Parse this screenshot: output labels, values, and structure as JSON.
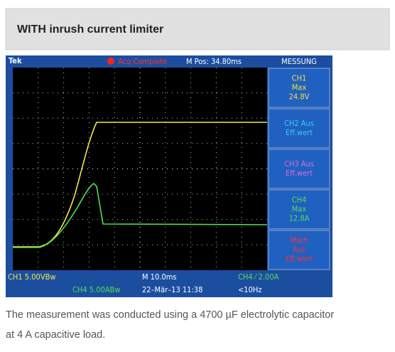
{
  "header": {
    "title": "WITH inrush current limiter"
  },
  "scope": {
    "brand": "Tek",
    "status": "Acq Complete",
    "position": "M Pos: 34.80ms",
    "panel": {
      "title": "MESSUNG",
      "items": [
        {
          "lines": [
            "CH1",
            "Max",
            "24.8V"
          ],
          "color": "#f0e040"
        },
        {
          "lines": [
            "CH2 Aus",
            "Eff.wert"
          ],
          "color": "#30d0f0"
        },
        {
          "lines": [
            "CH3 Aus",
            "Eff.wert"
          ],
          "color": "#d070d8"
        },
        {
          "lines": [
            "CH4",
            "Max",
            "12.8A"
          ],
          "color": "#50e050"
        },
        {
          "lines": [
            "Math",
            "Aus",
            "Eff.wert"
          ],
          "color": "#ff3030"
        }
      ]
    },
    "footer": {
      "ch1": "CH1  5.00VBw",
      "timebase": "M 10.0ms",
      "trigger": "CH4 ⁄ 2.00A",
      "ch4": "CH4  5.00ABw",
      "date": "22–Mär–13 11:38",
      "freq": "<10Hz"
    }
  },
  "caption": [
    "The measurement was conducted using a 4700 µF electrolytic capacitor",
    "at 4 A capacitive load."
  ]
}
